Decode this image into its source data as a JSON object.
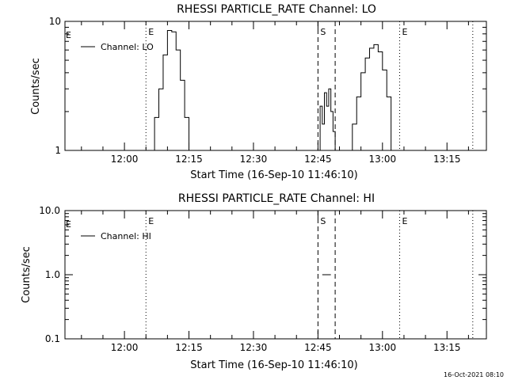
{
  "timestamp": "16-Oct-2021 08:10",
  "chart_data": [
    {
      "type": "line",
      "title": "RHESSI PARTICLE_RATE Channel: LO",
      "xlabel": "Start Time (16-Sep-10 11:46:10)",
      "ylabel": "Counts/sec",
      "yscale": "log",
      "ylim": [
        1,
        10
      ],
      "y_tick_labels": [
        "1",
        "10"
      ],
      "x_tick_labels": [
        "12:00",
        "12:15",
        "12:30",
        "12:45",
        "13:00",
        "13:15"
      ],
      "legend": "top-left",
      "series": [
        {
          "name": "Channel: LO",
          "segments": [
            [
              [
                "12:06",
                1.0
              ],
              [
                "12:07",
                1.8
              ],
              [
                "12:08",
                3.0
              ],
              [
                "12:09",
                5.5
              ],
              [
                "12:10",
                8.5
              ],
              [
                "12:11",
                8.3
              ],
              [
                "12:12",
                6.0
              ],
              [
                "12:13",
                3.5
              ],
              [
                "12:14",
                1.8
              ],
              [
                "12:15",
                1.0
              ]
            ],
            [
              [
                "12:45",
                1.0
              ],
              [
                "12:45:30",
                2.2
              ],
              [
                "12:46",
                1.6
              ],
              [
                "12:46:30",
                2.8
              ],
              [
                "12:47",
                2.2
              ],
              [
                "12:47:30",
                3.0
              ],
              [
                "12:48",
                2.0
              ],
              [
                "12:48:30",
                1.4
              ],
              [
                "12:49",
                1.0
              ]
            ],
            [
              [
                "12:52",
                1.0
              ],
              [
                "12:53",
                1.6
              ],
              [
                "12:54",
                2.6
              ],
              [
                "12:55",
                4.0
              ],
              [
                "12:56",
                5.2
              ],
              [
                "12:57",
                6.2
              ],
              [
                "12:58",
                6.6
              ],
              [
                "12:59",
                5.8
              ],
              [
                "13:00",
                4.2
              ],
              [
                "13:01",
                2.6
              ],
              [
                "13:02",
                1.0
              ]
            ]
          ]
        }
      ],
      "markers": [
        {
          "time": "12:05",
          "style": "dotted",
          "label": "E"
        },
        {
          "time": "12:45",
          "style": "dashed",
          "label": "S"
        },
        {
          "time": "12:49",
          "style": "dashed",
          "label": ""
        },
        {
          "time": "13:04",
          "style": "dotted",
          "label": "E"
        },
        {
          "time": "13:21",
          "style": "dotted",
          "label": ""
        }
      ]
    },
    {
      "type": "line",
      "title": "RHESSI PARTICLE_RATE Channel: HI",
      "xlabel": "Start Time (16-Sep-10 11:46:10)",
      "ylabel": "Counts/sec",
      "yscale": "log",
      "ylim": [
        0.1,
        10
      ],
      "y_tick_labels": [
        "0.1",
        "1.0",
        "10.0"
      ],
      "x_tick_labels": [
        "12:00",
        "12:15",
        "12:30",
        "12:45",
        "13:00",
        "13:15"
      ],
      "legend": "top-left",
      "series": [
        {
          "name": "Channel: HI",
          "segments": [
            [
              [
                "12:46",
                1.0
              ],
              [
                "12:48",
                1.0
              ]
            ]
          ]
        }
      ],
      "markers": [
        {
          "time": "12:05",
          "style": "dotted",
          "label": "E"
        },
        {
          "time": "12:45",
          "style": "dashed",
          "label": "S"
        },
        {
          "time": "12:49",
          "style": "dashed",
          "label": ""
        },
        {
          "time": "13:04",
          "style": "dotted",
          "label": "E"
        },
        {
          "time": "13:21",
          "style": "dotted",
          "label": ""
        }
      ]
    }
  ]
}
